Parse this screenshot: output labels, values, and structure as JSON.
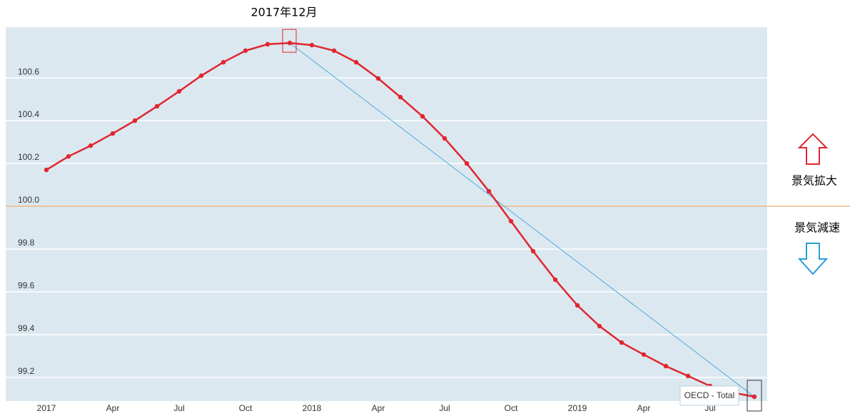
{
  "chart_data": {
    "type": "line",
    "annotation": "2017年12月",
    "label_up": "景気拡大",
    "label_down": "景気減速",
    "categories": [
      "2017",
      null,
      null,
      "Apr",
      null,
      null,
      "Jul",
      null,
      null,
      "Oct",
      null,
      null,
      "2018",
      null,
      null,
      "Apr",
      null,
      null,
      "Jul",
      null,
      null,
      "Oct",
      null,
      null,
      "2019",
      null,
      null,
      "Apr",
      null,
      null,
      "Jul",
      null,
      null
    ],
    "series": [
      {
        "name": "OECD - Total",
        "color": "#e0262f",
        "values": [
          100.17,
          100.233,
          100.283,
          100.34,
          100.4,
          100.467,
          100.537,
          100.61,
          100.673,
          100.727,
          100.757,
          100.763,
          100.753,
          100.727,
          100.673,
          100.597,
          100.51,
          100.42,
          100.317,
          100.2,
          100.07,
          99.93,
          99.79,
          99.657,
          99.537,
          99.44,
          99.363,
          99.307,
          99.253,
          99.207,
          99.16,
          99.13,
          99.11
        ]
      }
    ],
    "ylim": [
      99.09,
      100.837
    ],
    "yticks": [
      99.2,
      99.4,
      99.6,
      99.8,
      {
        "value": 100,
        "label": "100.0"
      },
      100.2,
      100.4,
      100.6
    ],
    "reference_line": 100,
    "reference_color": "#e8954a",
    "trend_color": "#2a9fd8",
    "grid": true
  }
}
